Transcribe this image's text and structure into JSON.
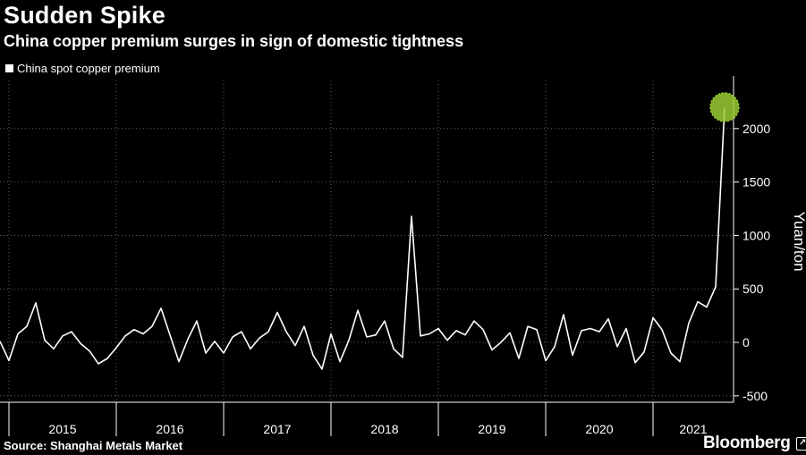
{
  "title": "Sudden Spike",
  "subtitle": "China copper premium surges in sign of domestic tightness",
  "source": "Source: Shanghai Metals Market",
  "brand": "Bloomberg",
  "brand_icon": "bloomberg-terminal-icon",
  "colors": {
    "background": "#000000",
    "line": "#ffffff",
    "highlight": "#9acd32",
    "grid": "#777777"
  },
  "chart_data": {
    "type": "line",
    "series": [
      {
        "name": "China spot copper premium",
        "x": [
          "2014-12",
          "2015-01",
          "2015-02",
          "2015-03",
          "2015-04",
          "2015-05",
          "2015-06",
          "2015-07",
          "2015-08",
          "2015-09",
          "2015-10",
          "2015-11",
          "2015-12",
          "2016-01",
          "2016-02",
          "2016-03",
          "2016-04",
          "2016-05",
          "2016-06",
          "2016-07",
          "2016-08",
          "2016-09",
          "2016-10",
          "2016-11",
          "2016-12",
          "2017-01",
          "2017-02",
          "2017-03",
          "2017-04",
          "2017-05",
          "2017-06",
          "2017-07",
          "2017-08",
          "2017-09",
          "2017-10",
          "2017-11",
          "2017-12",
          "2018-01",
          "2018-02",
          "2018-03",
          "2018-04",
          "2018-05",
          "2018-06",
          "2018-07",
          "2018-08",
          "2018-09",
          "2018-10",
          "2018-11",
          "2018-12",
          "2019-01",
          "2019-02",
          "2019-03",
          "2019-04",
          "2019-05",
          "2019-06",
          "2019-07",
          "2019-08",
          "2019-09",
          "2019-10",
          "2019-11",
          "2019-12",
          "2020-01",
          "2020-02",
          "2020-03",
          "2020-04",
          "2020-05",
          "2020-06",
          "2020-07",
          "2020-08",
          "2020-09",
          "2020-10",
          "2020-11",
          "2020-12",
          "2021-01",
          "2021-02",
          "2021-03",
          "2021-04",
          "2021-05",
          "2021-06",
          "2021-07",
          "2021-08",
          "2021-09"
        ],
        "values": [
          10,
          -170,
          80,
          150,
          370,
          20,
          -60,
          60,
          100,
          -10,
          -80,
          -200,
          -150,
          -50,
          60,
          120,
          80,
          150,
          320,
          70,
          -180,
          30,
          200,
          -100,
          10,
          -100,
          50,
          100,
          -60,
          40,
          100,
          280,
          100,
          -30,
          150,
          -120,
          -250,
          80,
          -180,
          20,
          300,
          50,
          70,
          200,
          -60,
          -140,
          1180,
          60,
          80,
          130,
          20,
          110,
          70,
          200,
          120,
          -70,
          0,
          90,
          -150,
          150,
          120,
          -170,
          -40,
          260,
          -120,
          110,
          130,
          100,
          220,
          -40,
          130,
          -190,
          -90,
          230,
          120,
          -100,
          -180,
          180,
          380,
          330,
          520,
          2200
        ]
      }
    ],
    "x_tick_labels": [
      "2015",
      "2016",
      "2017",
      "2018",
      "2019",
      "2020",
      "2021"
    ],
    "y_ticks": [
      -500,
      0,
      500,
      1000,
      1500,
      2000
    ],
    "ylabel": "Yuan/ton",
    "ylim": [
      -560,
      2450
    ],
    "x_range": [
      "2014-12",
      "2021-10"
    ],
    "y_axis_position": "right",
    "grid": "horizontal dotted",
    "legend": "top-left",
    "highlight_point": {
      "x": "2021-09",
      "y": 2200
    }
  }
}
